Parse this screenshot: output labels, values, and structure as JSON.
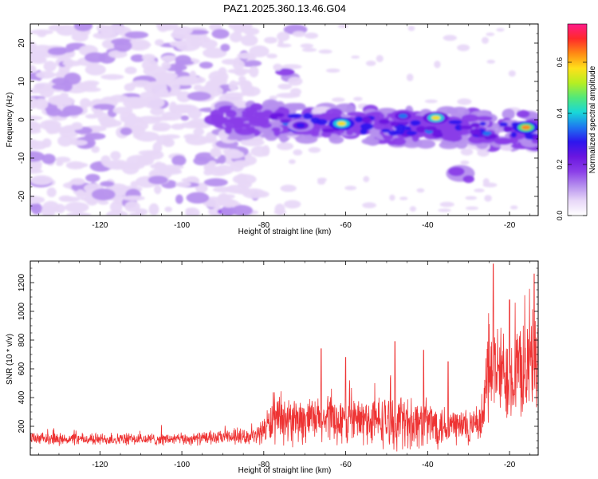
{
  "title": "PAZ1.2025.360.13.46.G04",
  "colors": {
    "signal": "#ee3333",
    "colormap": [
      "#ffffff",
      "#e8d8f8",
      "#b690ee",
      "#8a3ee8",
      "#6a16e0",
      "#2d16ee",
      "#1e78f0",
      "#18d8d8",
      "#52e87a",
      "#b6ee22",
      "#ffe01a",
      "#ff8a14",
      "#ff2a2a",
      "#ff1a8a"
    ]
  },
  "chart_data": [
    {
      "type": "heatmap",
      "name": "spectrogram",
      "xlabel": "Height of straight line (km)",
      "ylabel": "Frequency (Hz)",
      "xlim": [
        -137,
        -13
      ],
      "ylim": [
        -25,
        25
      ],
      "xticks": [
        -120,
        -100,
        -80,
        -60,
        -40,
        -20
      ],
      "yticks": [
        20,
        10,
        0,
        -10,
        -20
      ],
      "colorbar": {
        "label": "Normalized spectral amplitude",
        "range": [
          0,
          0.75
        ],
        "ticks": [
          "0.0",
          "0.2",
          "0.4",
          "0.6"
        ]
      },
      "features": [
        {
          "desc": "diffuse purple noise",
          "x_range": [
            -137,
            -80
          ],
          "freq_range": [
            -25,
            25
          ]
        },
        {
          "desc": "main signal band",
          "x_range": [
            -92,
            -13
          ],
          "freq_center_start": 0,
          "freq_center_end": -3
        },
        {
          "desc": "secondary blob",
          "x": -32,
          "freq": -14
        }
      ],
      "peaks": [
        {
          "x": -61,
          "freq": -1,
          "amp": 0.6
        },
        {
          "x": -38,
          "freq": 0.5,
          "amp": 0.55
        },
        {
          "x": -16,
          "freq": -2,
          "amp": 0.65
        },
        {
          "x": -46,
          "freq": 1,
          "amp": 0.35
        },
        {
          "x": -71,
          "freq": -1.5,
          "amp": 0.3
        }
      ]
    },
    {
      "type": "line",
      "name": "snr",
      "xlabel": "Height of straight line (km)",
      "ylabel": "SNR (10 * v/v)",
      "xlim": [
        -137,
        -13
      ],
      "ylim": [
        0,
        1350
      ],
      "xticks": [
        -120,
        -100,
        -80,
        -60,
        -40,
        -20
      ],
      "yticks": [
        200,
        400,
        600,
        800,
        1000,
        1200
      ],
      "series": [
        {
          "name": "SNR",
          "envelope": [
            {
              "x": -137,
              "base": 110,
              "spread": 50
            },
            {
              "x": -100,
              "base": 110,
              "spread": 50
            },
            {
              "x": -82,
              "base": 130,
              "spread": 60
            },
            {
              "x": -78,
              "base": 230,
              "spread": 180
            },
            {
              "x": -60,
              "base": 240,
              "spread": 200
            },
            {
              "x": -45,
              "base": 230,
              "spread": 220
            },
            {
              "x": -27,
              "base": 190,
              "spread": 150
            },
            {
              "x": -25,
              "base": 600,
              "spread": 400
            },
            {
              "x": -20,
              "base": 550,
              "spread": 380
            },
            {
              "x": -13,
              "base": 650,
              "spread": 450
            }
          ],
          "peaks": [
            {
              "x": -66,
              "y": 740
            },
            {
              "x": -60,
              "y": 680
            },
            {
              "x": -48,
              "y": 790
            },
            {
              "x": -41,
              "y": 730
            },
            {
              "x": -35,
              "y": 650
            },
            {
              "x": -24,
              "y": 1330
            },
            {
              "x": -20,
              "y": 1080
            },
            {
              "x": -14,
              "y": 1260
            }
          ]
        }
      ]
    }
  ]
}
